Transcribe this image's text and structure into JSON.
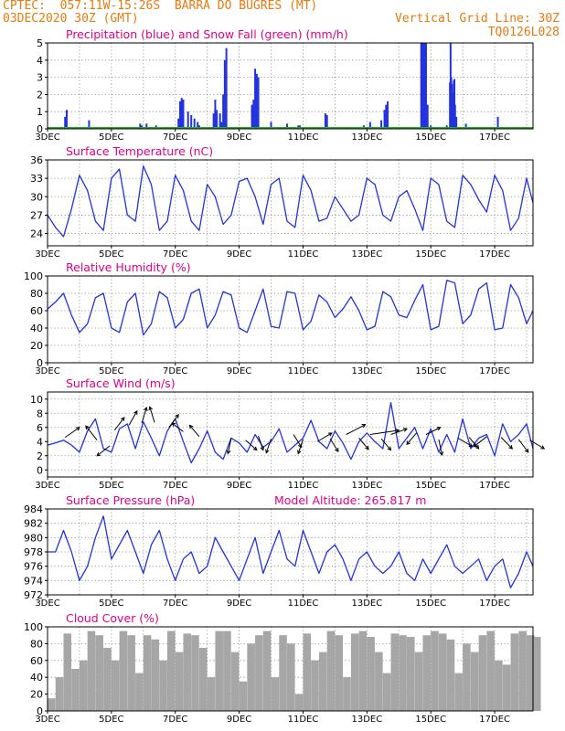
{
  "header": {
    "line1": "CPTEC:  057:11W-15:26S  BARRA DO BUGRES (MT)",
    "line2_left": "03DEC2020 30Z (GMT)",
    "line2_right": "Vertical Grid Line: 30Z",
    "code": "TQ0126L028"
  },
  "colors": {
    "header": "#e87a10",
    "title": "#e0008a",
    "line": "#2233dd",
    "snow": "#22aa22",
    "cloud": "#a6a6a6",
    "arrow": "#000000"
  },
  "x_ticks": [
    "3DEC",
    "5DEC",
    "7DEC",
    "9DEC",
    "11DEC",
    "13DEC",
    "15DEC",
    "17DEC"
  ],
  "chart_data": [
    {
      "id": "precip",
      "type": "bar",
      "title": "Precipitation (blue) and Snow Fall (green) (mm/h)",
      "xlim": [
        3,
        18.2
      ],
      "ylim": [
        0,
        5
      ],
      "yticks": [
        0,
        1,
        2,
        3,
        4,
        5
      ],
      "x": [
        3.55,
        3.6,
        4.3,
        5.9,
        5.95,
        6.1,
        6.2,
        6.4,
        7.1,
        7.15,
        7.2,
        7.25,
        7.4,
        7.5,
        7.6,
        7.7,
        7.75,
        7.8,
        8.2,
        8.25,
        8.3,
        8.4,
        8.45,
        8.5,
        8.55,
        8.6,
        9.4,
        9.45,
        9.5,
        9.55,
        9.6,
        10.0,
        10.5,
        10.85,
        10.9,
        11.7,
        11.75,
        12.9,
        13.1,
        13.45,
        13.55,
        13.6,
        13.65,
        14.7,
        14.75,
        14.8,
        14.85,
        14.9,
        15.0,
        15.5,
        15.6,
        15.62,
        15.64,
        15.66,
        15.68,
        15.7,
        15.72,
        15.74,
        15.76,
        15.8,
        16.1,
        17.1,
        17.3
      ],
      "values": [
        0.7,
        1.1,
        0.5,
        0.3,
        0.2,
        0.3,
        0.1,
        0.2,
        0.6,
        1.6,
        1.8,
        1.7,
        1.0,
        0.8,
        0.6,
        0.4,
        0.2,
        0.1,
        0.9,
        1.7,
        1.1,
        0.9,
        0.4,
        2.0,
        4.0,
        4.7,
        1.4,
        1.7,
        3.5,
        3.2,
        3.0,
        0.4,
        0.3,
        0.2,
        0.2,
        0.9,
        0.8,
        0.2,
        0.4,
        0.5,
        1.1,
        1.4,
        1.6,
        5.0,
        5.0,
        5.0,
        5.0,
        1.4,
        0.2,
        0.2,
        2.7,
        5.0,
        3.0,
        2.6,
        1.8,
        2.1,
        2.8,
        2.9,
        1.4,
        0.7,
        0.3,
        0.7,
        0.1
      ],
      "snow_values": []
    },
    {
      "id": "temp",
      "type": "line",
      "title": "Surface Temperature (nC)",
      "xlim": [
        3,
        18.2
      ],
      "ylim": [
        22,
        36
      ],
      "yticks": [
        24,
        27,
        30,
        33,
        36
      ],
      "x": [
        3.0,
        3.25,
        3.5,
        3.75,
        4.0,
        4.25,
        4.5,
        4.75,
        5.0,
        5.25,
        5.5,
        5.75,
        6.0,
        6.25,
        6.5,
        6.75,
        7.0,
        7.25,
        7.5,
        7.75,
        8.0,
        8.25,
        8.5,
        8.75,
        9.0,
        9.25,
        9.5,
        9.75,
        10.0,
        10.25,
        10.5,
        10.75,
        11.0,
        11.25,
        11.5,
        11.75,
        12.0,
        12.25,
        12.5,
        12.75,
        13.0,
        13.25,
        13.5,
        13.75,
        14.0,
        14.25,
        14.5,
        14.75,
        15.0,
        15.25,
        15.5,
        15.75,
        16.0,
        16.25,
        16.5,
        16.75,
        17.0,
        17.25,
        17.5,
        17.75,
        18.0,
        18.2
      ],
      "values": [
        27,
        25,
        23.5,
        28,
        33.5,
        31,
        26,
        24.5,
        33,
        34.5,
        27,
        26,
        35,
        32,
        24.5,
        26,
        33.5,
        31,
        26,
        24.5,
        32,
        30,
        25.5,
        27,
        32.5,
        33,
        30,
        25.5,
        32,
        33,
        26,
        25,
        33.5,
        31,
        26,
        26.5,
        30,
        28,
        26,
        27,
        33,
        32,
        27,
        26,
        30,
        31,
        28,
        24.5,
        33,
        32,
        26,
        25,
        33.5,
        32,
        29.5,
        27.5,
        33.5,
        31,
        24.5,
        26.5,
        33,
        29
      ]
    },
    {
      "id": "rh",
      "type": "line",
      "title": "Relative Humidity (%)",
      "xlim": [
        3,
        18.2
      ],
      "ylim": [
        0,
        100
      ],
      "yticks": [
        0,
        20,
        40,
        60,
        80,
        100
      ],
      "x": [
        3.0,
        3.25,
        3.5,
        3.75,
        4.0,
        4.25,
        4.5,
        4.75,
        5.0,
        5.25,
        5.5,
        5.75,
        6.0,
        6.25,
        6.5,
        6.75,
        7.0,
        7.25,
        7.5,
        7.75,
        8.0,
        8.25,
        8.5,
        8.75,
        9.0,
        9.25,
        9.5,
        9.75,
        10.0,
        10.25,
        10.5,
        10.75,
        11.0,
        11.25,
        11.5,
        11.75,
        12.0,
        12.25,
        12.5,
        12.75,
        13.0,
        13.25,
        13.5,
        13.75,
        14.0,
        14.25,
        14.5,
        14.75,
        15.0,
        15.25,
        15.5,
        15.75,
        16.0,
        16.25,
        16.5,
        16.75,
        17.0,
        17.25,
        17.5,
        17.75,
        18.0,
        18.2
      ],
      "values": [
        62,
        70,
        80,
        55,
        35,
        45,
        75,
        80,
        40,
        35,
        70,
        80,
        32,
        45,
        82,
        75,
        40,
        50,
        80,
        85,
        40,
        55,
        82,
        78,
        40,
        35,
        60,
        85,
        42,
        40,
        82,
        80,
        38,
        48,
        78,
        70,
        52,
        62,
        76,
        60,
        38,
        42,
        82,
        76,
        55,
        52,
        72,
        90,
        38,
        42,
        95,
        92,
        45,
        55,
        85,
        92,
        38,
        40,
        90,
        75,
        45,
        60
      ]
    },
    {
      "id": "wind",
      "type": "line",
      "title": "Surface Wind (m/s)",
      "xlim": [
        3,
        18.2
      ],
      "ylim": [
        -1,
        11
      ],
      "yticks": [
        0,
        2,
        4,
        6,
        8,
        10
      ],
      "x": [
        3.0,
        3.25,
        3.5,
        3.75,
        4.0,
        4.25,
        4.5,
        4.75,
        5.0,
        5.25,
        5.5,
        5.75,
        6.0,
        6.25,
        6.5,
        6.75,
        7.0,
        7.25,
        7.5,
        7.75,
        8.0,
        8.25,
        8.5,
        8.75,
        9.0,
        9.25,
        9.5,
        9.75,
        10.0,
        10.25,
        10.5,
        10.75,
        11.0,
        11.25,
        11.5,
        11.75,
        12.0,
        12.25,
        12.5,
        12.75,
        13.0,
        13.25,
        13.5,
        13.75,
        14.0,
        14.25,
        14.5,
        14.75,
        15.0,
        15.25,
        15.5,
        15.75,
        16.0,
        16.25,
        16.5,
        16.75,
        17.0,
        17.25,
        17.5,
        17.75,
        18.0,
        18.2
      ],
      "values": [
        3.5,
        3.8,
        4.2,
        3.5,
        2.5,
        5.5,
        7.2,
        3.0,
        2.5,
        5.8,
        6.5,
        3.0,
        6.8,
        4.5,
        2.0,
        5.5,
        7.2,
        4.0,
        1.0,
        3.0,
        5.5,
        2.5,
        1.5,
        4.5,
        3.8,
        2.5,
        5.0,
        3.2,
        4.0,
        5.8,
        2.5,
        3.5,
        4.5,
        7.0,
        4.0,
        3.0,
        5.5,
        3.8,
        1.5,
        4.0,
        5.2,
        4.0,
        3.0,
        9.5,
        3.0,
        4.5,
        6.0,
        3.0,
        5.8,
        2.5,
        5.0,
        2.5,
        7.2,
        3.0,
        4.5,
        5.0,
        2.0,
        6.5,
        4.0,
        5.0,
        6.5,
        3.0
      ],
      "arrows": [
        {
          "x": 3.55,
          "y": 4.6,
          "dx": 0.45,
          "dy": 0.35
        },
        {
          "x": 4.55,
          "y": 4.2,
          "dx": -0.35,
          "dy": 0.5
        },
        {
          "x": 4.95,
          "y": 3.4,
          "dx": -0.4,
          "dy": -0.35
        },
        {
          "x": 5.1,
          "y": 5.6,
          "dx": 0.3,
          "dy": 0.45
        },
        {
          "x": 5.55,
          "y": 6.3,
          "dx": 0.25,
          "dy": 0.5
        },
        {
          "x": 5.95,
          "y": 6.6,
          "dx": 0.15,
          "dy": 0.55
        },
        {
          "x": 6.35,
          "y": 6.7,
          "dx": -0.15,
          "dy": 0.55
        },
        {
          "x": 6.8,
          "y": 6.0,
          "dx": 0.3,
          "dy": 0.45
        },
        {
          "x": 7.25,
          "y": 5.4,
          "dx": -0.35,
          "dy": 0.3
        },
        {
          "x": 7.75,
          "y": 4.7,
          "dx": -0.3,
          "dy": 0.4
        },
        {
          "x": 8.75,
          "y": 4.5,
          "dx": -0.1,
          "dy": -0.55
        },
        {
          "x": 9.2,
          "y": 4.2,
          "dx": 0.35,
          "dy": -0.35
        },
        {
          "x": 9.6,
          "y": 4.8,
          "dx": 0.15,
          "dy": -0.5
        },
        {
          "x": 10.0,
          "y": 4.4,
          "dx": -0.15,
          "dy": -0.5
        },
        {
          "x": 10.7,
          "y": 5.0,
          "dx": 0.25,
          "dy": -0.45
        },
        {
          "x": 11.0,
          "y": 4.3,
          "dx": -0.15,
          "dy": -0.5
        },
        {
          "x": 11.45,
          "y": 4.0,
          "dx": 0.45,
          "dy": 0.3
        },
        {
          "x": 11.85,
          "y": 4.4,
          "dx": 0.25,
          "dy": -0.45
        },
        {
          "x": 12.35,
          "y": 5.0,
          "dx": 0.6,
          "dy": 0.35
        },
        {
          "x": 12.75,
          "y": 4.5,
          "dx": 0.3,
          "dy": -0.4
        },
        {
          "x": 13.1,
          "y": 5.0,
          "dx": 0.9,
          "dy": 0.15
        },
        {
          "x": 13.45,
          "y": 4.4,
          "dx": 0.3,
          "dy": -0.4
        },
        {
          "x": 13.75,
          "y": 5.0,
          "dx": 0.5,
          "dy": 0.2
        },
        {
          "x": 14.55,
          "y": 5.2,
          "dx": -0.3,
          "dy": -0.4
        },
        {
          "x": 14.85,
          "y": 5.0,
          "dx": 0.45,
          "dy": 0.25
        },
        {
          "x": 15.25,
          "y": 4.3,
          "dx": 0.1,
          "dy": -0.55
        },
        {
          "x": 15.85,
          "y": 4.5,
          "dx": 0.45,
          "dy": -0.3
        },
        {
          "x": 16.2,
          "y": 4.6,
          "dx": 0.3,
          "dy": -0.4
        },
        {
          "x": 16.75,
          "y": 4.7,
          "dx": -0.4,
          "dy": -0.35
        },
        {
          "x": 17.2,
          "y": 4.6,
          "dx": 0.35,
          "dy": -0.4
        },
        {
          "x": 17.75,
          "y": 4.3,
          "dx": 0.3,
          "dy": -0.45
        },
        {
          "x": 18.1,
          "y": 4.2,
          "dx": 0.45,
          "dy": -0.3
        }
      ]
    },
    {
      "id": "pressure",
      "type": "line",
      "title": "Surface Pressure (hPa)",
      "annotation": "Model Altitude: 265.817 m",
      "xlim": [
        3,
        18.2
      ],
      "ylim": [
        972,
        984
      ],
      "yticks": [
        972,
        974,
        976,
        978,
        980,
        982,
        984
      ],
      "x": [
        3.0,
        3.25,
        3.5,
        3.75,
        4.0,
        4.25,
        4.5,
        4.75,
        5.0,
        5.25,
        5.5,
        5.75,
        6.0,
        6.25,
        6.5,
        6.75,
        7.0,
        7.25,
        7.5,
        7.75,
        8.0,
        8.25,
        8.5,
        8.75,
        9.0,
        9.25,
        9.5,
        9.75,
        10.0,
        10.25,
        10.5,
        10.75,
        11.0,
        11.25,
        11.5,
        11.75,
        12.0,
        12.25,
        12.5,
        12.75,
        13.0,
        13.25,
        13.5,
        13.75,
        14.0,
        14.25,
        14.5,
        14.75,
        15.0,
        15.25,
        15.5,
        15.75,
        16.0,
        16.25,
        16.5,
        16.75,
        17.0,
        17.25,
        17.5,
        17.75,
        18.0,
        18.2
      ],
      "values": [
        978,
        978,
        981,
        978,
        974,
        976,
        980,
        983,
        977,
        979,
        981,
        978,
        975,
        979,
        981,
        977,
        974,
        977,
        978,
        975,
        976,
        980,
        978,
        976,
        974,
        977,
        980,
        975,
        978,
        981,
        977,
        976,
        981,
        978,
        975,
        978,
        979,
        977,
        974,
        977,
        978,
        976,
        975,
        976,
        978,
        975,
        974,
        977,
        975,
        977,
        979,
        976,
        975,
        976,
        977,
        974,
        976,
        977,
        973,
        975,
        978,
        976
      ]
    },
    {
      "id": "cloud",
      "type": "area",
      "title": "Cloud Cover (%)",
      "xlim": [
        3,
        18.2
      ],
      "ylim": [
        0,
        100
      ],
      "yticks": [
        0,
        20,
        40,
        60,
        80,
        100
      ],
      "x": [
        3.0,
        3.25,
        3.5,
        3.75,
        4.0,
        4.25,
        4.5,
        4.75,
        5.0,
        5.25,
        5.5,
        5.75,
        6.0,
        6.25,
        6.5,
        6.75,
        7.0,
        7.25,
        7.5,
        7.75,
        8.0,
        8.25,
        8.5,
        8.75,
        9.0,
        9.25,
        9.5,
        9.75,
        10.0,
        10.25,
        10.5,
        10.75,
        11.0,
        11.25,
        11.5,
        11.75,
        12.0,
        12.25,
        12.5,
        12.75,
        13.0,
        13.25,
        13.5,
        13.75,
        14.0,
        14.25,
        14.5,
        14.75,
        15.0,
        15.25,
        15.5,
        15.75,
        16.0,
        16.25,
        16.5,
        16.75,
        17.0,
        17.25,
        17.5,
        17.75,
        18.0,
        18.2
      ],
      "values": [
        15,
        40,
        92,
        50,
        60,
        95,
        90,
        75,
        60,
        95,
        90,
        45,
        90,
        85,
        60,
        95,
        70,
        92,
        90,
        75,
        40,
        95,
        95,
        70,
        35,
        80,
        90,
        95,
        40,
        90,
        80,
        20,
        92,
        60,
        70,
        95,
        90,
        40,
        92,
        95,
        88,
        70,
        45,
        92,
        90,
        88,
        70,
        90,
        95,
        92,
        85,
        45,
        80,
        70,
        90,
        95,
        60,
        55,
        92,
        95,
        90,
        88
      ]
    }
  ]
}
